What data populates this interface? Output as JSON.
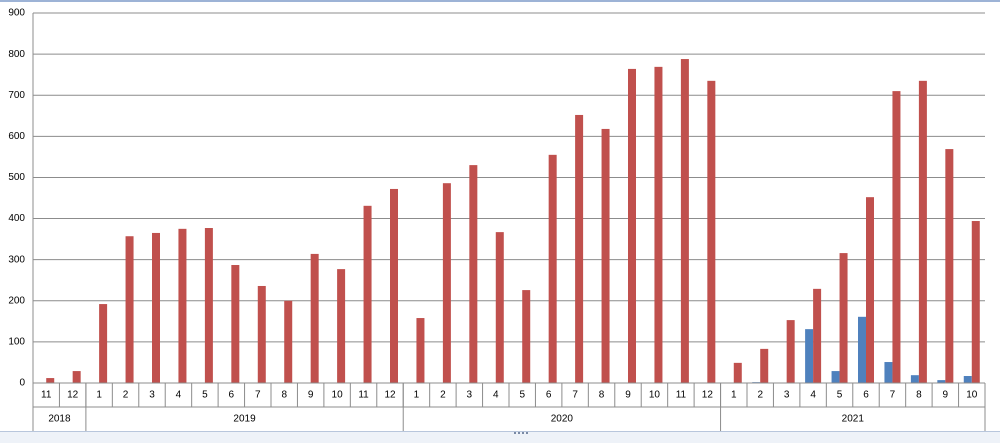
{
  "chart_data": {
    "type": "bar",
    "category_groups": [
      {
        "label": "2018",
        "categories": [
          "11",
          "12"
        ]
      },
      {
        "label": "2019",
        "categories": [
          "1",
          "2",
          "3",
          "4",
          "5",
          "6",
          "7",
          "8",
          "9",
          "10",
          "11",
          "12"
        ]
      },
      {
        "label": "2020",
        "categories": [
          "1",
          "2",
          "3",
          "4",
          "5",
          "6",
          "7",
          "8",
          "9",
          "10",
          "11",
          "12"
        ]
      },
      {
        "label": "2021",
        "categories": [
          "1",
          "2",
          "3",
          "4",
          "5",
          "6",
          "7",
          "8",
          "9",
          "10"
        ]
      }
    ],
    "series": [
      {
        "color": "#4f81bd",
        "values": [
          0,
          0,
          0,
          0,
          0,
          0,
          0,
          0,
          0,
          0,
          0,
          0,
          0,
          0,
          0,
          0,
          0,
          0,
          0,
          0,
          0,
          0,
          0,
          0,
          0,
          0,
          0,
          2,
          0,
          131,
          29,
          161,
          51,
          19,
          7,
          17
        ]
      },
      {
        "color": "#c0504d",
        "values": [
          12,
          29,
          192,
          357,
          365,
          375,
          377,
          287,
          236,
          200,
          314,
          277,
          431,
          472,
          158,
          486,
          530,
          367,
          226,
          555,
          652,
          618,
          764,
          769,
          788,
          735,
          49,
          83,
          153,
          229,
          316,
          452,
          710,
          735,
          569,
          394
        ]
      }
    ],
    "ylim": [
      0,
      900
    ],
    "yticks": [
      0,
      100,
      200,
      300,
      400,
      500,
      600,
      700,
      800,
      900
    ],
    "grid": true
  }
}
